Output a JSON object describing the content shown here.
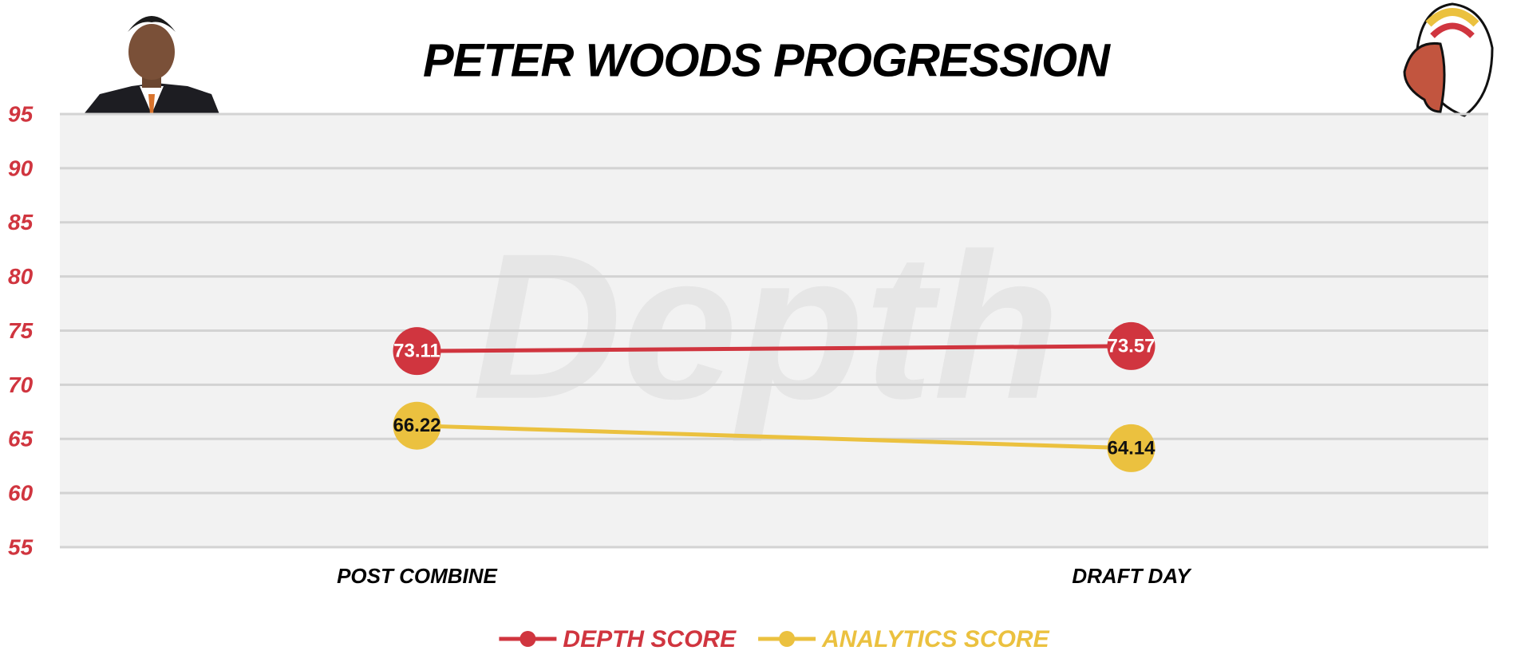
{
  "chart_data": {
    "type": "line",
    "title": "PETER WOODS PROGRESSION",
    "watermark": "Depth",
    "categories": [
      "POST COMBINE",
      "DRAFT DAY"
    ],
    "series": [
      {
        "name": "DEPTH SCORE",
        "color": "#d0353f",
        "values": [
          73.11,
          73.57
        ]
      },
      {
        "name": "ANALYTICS SCORE",
        "color": "#ebc13f",
        "values": [
          66.22,
          64.14
        ]
      }
    ],
    "ylim": [
      55,
      95
    ],
    "yticks": [
      55,
      60,
      65,
      70,
      75,
      80,
      85,
      90,
      95
    ],
    "grid": true,
    "legend": "bottom"
  }
}
